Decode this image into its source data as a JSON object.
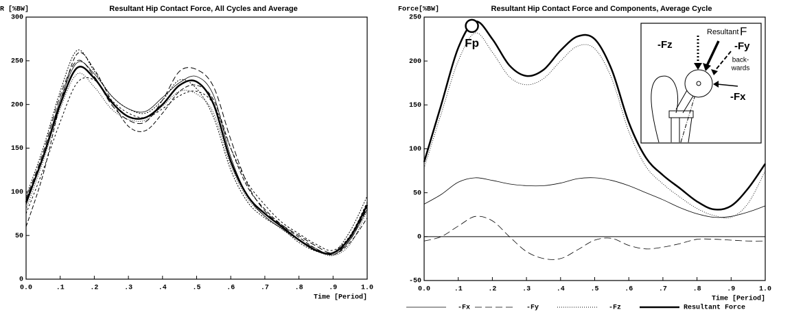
{
  "chart_data": [
    {
      "type": "line",
      "title": "Resultant Hip Contact Force, All Cycles and Average",
      "ylabel": "R [%BW]",
      "xlabel": "Time [Period]",
      "xlim": [
        0,
        1
      ],
      "ylim": [
        0,
        300
      ],
      "xticks": [
        {
          "value": 0,
          "label": "0.0"
        },
        {
          "value": 0.1,
          "label": ".1"
        },
        {
          "value": 0.2,
          "label": ".2"
        },
        {
          "value": 0.3,
          "label": ".3"
        },
        {
          "value": 0.4,
          "label": ".4"
        },
        {
          "value": 0.5,
          "label": ".5"
        },
        {
          "value": 0.6,
          "label": ".6"
        },
        {
          "value": 0.7,
          "label": ".7"
        },
        {
          "value": 0.8,
          "label": ".8"
        },
        {
          "value": 0.9,
          "label": ".9"
        },
        {
          "value": 1,
          "label": "1.0"
        }
      ],
      "yticks": [
        0,
        50,
        100,
        150,
        200,
        250,
        300
      ],
      "x": [
        0,
        0.05,
        0.1,
        0.15,
        0.2,
        0.25,
        0.3,
        0.35,
        0.4,
        0.45,
        0.5,
        0.55,
        0.6,
        0.65,
        0.7,
        0.75,
        0.8,
        0.85,
        0.9,
        0.95,
        1
      ],
      "series": [
        {
          "color": "#000",
          "dash": "6 3",
          "width": 1,
          "values": [
            60,
            120,
            200,
            258,
            240,
            205,
            175,
            170,
            190,
            215,
            222,
            205,
            150,
            105,
            80,
            62,
            48,
            35,
            28,
            42,
            70
          ]
        },
        {
          "color": "#000",
          "dash": "2 2",
          "width": 1,
          "values": [
            95,
            150,
            215,
            262,
            238,
            210,
            195,
            190,
            205,
            228,
            218,
            185,
            125,
            88,
            70,
            58,
            42,
            32,
            30,
            55,
            95
          ]
        },
        {
          "color": "#000",
          "dash": "",
          "width": 0.8,
          "values": [
            85,
            140,
            205,
            248,
            235,
            210,
            195,
            192,
            208,
            225,
            232,
            210,
            140,
            95,
            72,
            58,
            45,
            35,
            28,
            45,
            80
          ]
        },
        {
          "color": "#000",
          "dash": "3 3",
          "width": 1,
          "values": [
            75,
            125,
            180,
            225,
            228,
            205,
            190,
            185,
            195,
            210,
            215,
            200,
            150,
            110,
            85,
            65,
            52,
            40,
            33,
            50,
            88
          ]
        },
        {
          "color": "#000",
          "dash": "8 4",
          "width": 1,
          "values": [
            92,
            145,
            210,
            250,
            232,
            200,
            182,
            180,
            205,
            238,
            240,
            220,
            160,
            108,
            78,
            62,
            50,
            38,
            30,
            45,
            82
          ]
        },
        {
          "color": "#000",
          "dash": "1 2",
          "width": 1,
          "values": [
            80,
            135,
            195,
            235,
            220,
            195,
            183,
            182,
            198,
            215,
            212,
            190,
            130,
            92,
            72,
            57,
            44,
            33,
            27,
            40,
            78
          ]
        },
        {
          "color": "#000",
          "dash": "",
          "width": 2.5,
          "values": [
            88,
            140,
            200,
            242,
            230,
            203,
            186,
            185,
            200,
            222,
            226,
            200,
            135,
            95,
            75,
            60,
            45,
            33,
            30,
            48,
            85
          ]
        }
      ]
    },
    {
      "type": "line",
      "title": "Resultant Hip Contact Force and Components,  Average Cycle",
      "ylabel": "Force[%BW]",
      "xlabel": "Time [Period]",
      "xlim": [
        0,
        1
      ],
      "ylim": [
        -50,
        250
      ],
      "xticks": [
        {
          "value": 0,
          "label": "0.0"
        },
        {
          "value": 0.1,
          "label": ".1"
        },
        {
          "value": 0.2,
          "label": ".2"
        },
        {
          "value": 0.3,
          "label": ".3"
        },
        {
          "value": 0.4,
          "label": ".4"
        },
        {
          "value": 0.5,
          "label": ".5"
        },
        {
          "value": 0.6,
          "label": ".6"
        },
        {
          "value": 0.7,
          "label": ".7"
        },
        {
          "value": 0.8,
          "label": ".8"
        },
        {
          "value": 0.9,
          "label": ".9"
        },
        {
          "value": 1,
          "label": "1.0"
        }
      ],
      "yticks": [
        -50,
        0,
        50,
        100,
        150,
        200,
        250
      ],
      "hline": 0,
      "x": [
        0,
        0.05,
        0.1,
        0.15,
        0.2,
        0.25,
        0.3,
        0.35,
        0.4,
        0.45,
        0.5,
        0.55,
        0.6,
        0.65,
        0.7,
        0.75,
        0.8,
        0.85,
        0.9,
        0.95,
        1
      ],
      "series": [
        {
          "name": "-Fx",
          "color": "#000",
          "dash": "",
          "width": 0.8,
          "values": [
            37,
            48,
            62,
            67,
            64,
            60,
            58,
            58,
            61,
            66,
            67,
            64,
            58,
            50,
            42,
            33,
            26,
            22,
            23,
            28,
            35
          ]
        },
        {
          "name": "-Fy",
          "color": "#000",
          "dash": "10 5",
          "width": 0.8,
          "values": [
            -5,
            0,
            12,
            23,
            18,
            0,
            -17,
            -25,
            -25,
            -15,
            -4,
            -2,
            -10,
            -14,
            -12,
            -8,
            -3,
            -3,
            -4,
            -5,
            -5
          ]
        },
        {
          "name": "-Fz",
          "color": "#000",
          "dash": "1 2",
          "width": 0.9,
          "values": [
            78,
            140,
            200,
            232,
            210,
            182,
            173,
            180,
            200,
            217,
            214,
            180,
            120,
            80,
            60,
            45,
            32,
            24,
            22,
            38,
            75
          ]
        },
        {
          "name": "Resultant Force",
          "color": "#000",
          "dash": "",
          "width": 2.5,
          "values": [
            85,
            150,
            215,
            245,
            225,
            195,
            183,
            190,
            212,
            228,
            225,
            190,
            130,
            90,
            70,
            55,
            40,
            31,
            35,
            55,
            83
          ]
        }
      ],
      "annotations": [
        {
          "text": "Fp",
          "x": 0.14,
          "y": 240
        }
      ],
      "inset_labels": [
        "Resultant",
        "F",
        "-Fz",
        "-Fy",
        "back-",
        "wards",
        "-Fx"
      ]
    }
  ]
}
